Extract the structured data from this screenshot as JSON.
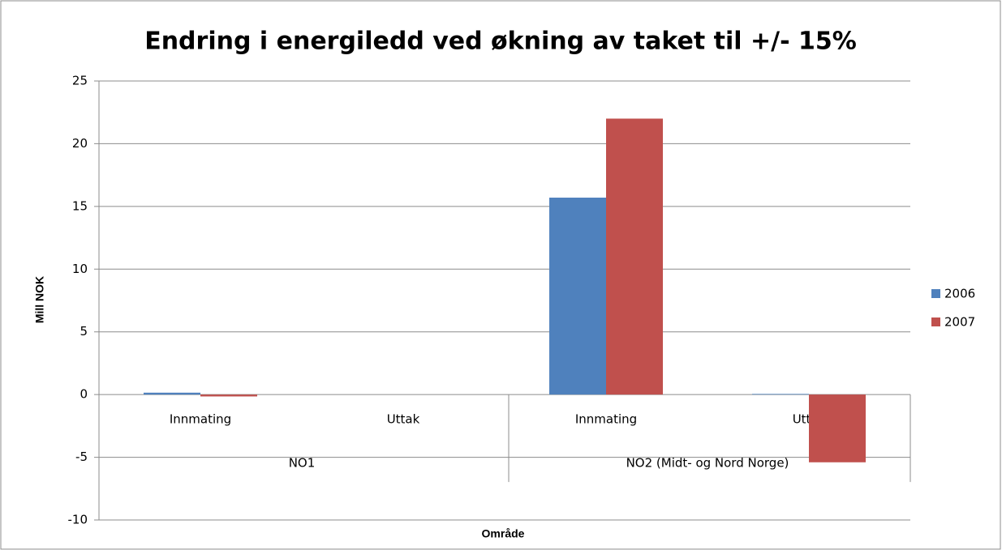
{
  "chart_data": {
    "type": "bar",
    "title": "Endring i energiledd ved økning av taket til +/- 15%",
    "x_label": "Område",
    "y_label": "Mill NOK",
    "categories": [
      "Innmating",
      "Uttak",
      "Innmating",
      "Uttak"
    ],
    "groups": [
      "NO1",
      "NO2 (Midt- og Nord Norge)"
    ],
    "series": [
      {
        "name": "2006",
        "color": "#4f81bd",
        "values": [
          0.15,
          0,
          15.7,
          0.05
        ]
      },
      {
        "name": "2007",
        "color": "#c0504d",
        "values": [
          -0.15,
          0,
          22,
          -5.4
        ]
      }
    ],
    "ylim": [
      -10,
      25
    ],
    "yticks": [
      -10,
      -5,
      0,
      5,
      10,
      15,
      20,
      25
    ],
    "grid": true,
    "legend": "right"
  }
}
